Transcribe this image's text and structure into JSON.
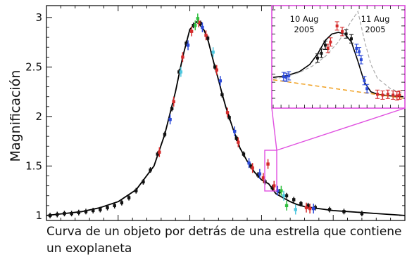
{
  "chart_data": [
    {
      "type": "line",
      "ylabel": "Magnificación",
      "ylim": [
        0.95,
        3.12
      ],
      "xlim": [
        0,
        100
      ],
      "yticks": [
        1,
        1.5,
        2,
        2.5,
        3
      ],
      "ytick_labels": [
        "1",
        "1.5",
        "2",
        "2.5",
        "3"
      ],
      "series": [
        {
          "kind": "model",
          "x": [
            0,
            5,
            10,
            15,
            20,
            25,
            30,
            33,
            36,
            38,
            40,
            42,
            44,
            45,
            46,
            47,
            48,
            49,
            50,
            52,
            54,
            56,
            58,
            60,
            62,
            64,
            66,
            68,
            70,
            72,
            74,
            76,
            78,
            80,
            84,
            88,
            92,
            96,
            100
          ],
          "y": [
            1.0,
            1.02,
            1.04,
            1.08,
            1.14,
            1.26,
            1.5,
            1.82,
            2.25,
            2.6,
            2.88,
            2.96,
            2.87,
            2.78,
            2.64,
            2.5,
            2.37,
            2.23,
            2.1,
            1.88,
            1.68,
            1.55,
            1.44,
            1.36,
            1.32,
            1.22,
            1.18,
            1.14,
            1.11,
            1.09,
            1.08,
            1.07,
            1.06,
            1.05,
            1.04,
            1.03,
            1.02,
            1.01,
            1.0
          ]
        },
        {
          "kind": "observations",
          "color": "#111111",
          "x": [
            1,
            3,
            5,
            7,
            9,
            11,
            13,
            15,
            17,
            19,
            21,
            23,
            25,
            27,
            29,
            31,
            33,
            35,
            37,
            39,
            41,
            43,
            45,
            47,
            49,
            51,
            53,
            55,
            57,
            59,
            61,
            63,
            65,
            67,
            69,
            71,
            73,
            75,
            79,
            83,
            88
          ],
          "y": [
            1.0,
            1.01,
            1.02,
            1.02,
            1.03,
            1.04,
            1.05,
            1.06,
            1.08,
            1.1,
            1.13,
            1.18,
            1.25,
            1.34,
            1.46,
            1.62,
            1.82,
            2.08,
            2.45,
            2.74,
            2.92,
            2.94,
            2.79,
            2.5,
            2.22,
            1.99,
            1.78,
            1.62,
            1.5,
            1.41,
            1.34,
            1.28,
            1.24,
            1.2,
            1.16,
            1.12,
            1.1,
            1.08,
            1.06,
            1.04,
            1.02
          ]
        },
        {
          "kind": "observations",
          "color": "#d42a2a",
          "x": [
            31.5,
            35.5,
            38,
            40.5,
            42.5,
            44.5,
            47.5,
            50.5,
            53.5,
            57.5,
            60.5,
            61.8,
            63.5,
            72.5,
            73.5
          ],
          "y": [
            1.64,
            2.15,
            2.6,
            2.86,
            2.95,
            2.82,
            2.47,
            2.04,
            1.74,
            1.48,
            1.38,
            1.52,
            1.3,
            1.08,
            1.07
          ]
        },
        {
          "kind": "observations",
          "color": "#2c4ad8",
          "x": [
            34.5,
            39.5,
            43.5,
            48.5,
            52.5,
            56.5,
            59.5,
            64.5,
            74.5
          ],
          "y": [
            1.97,
            2.72,
            2.9,
            2.36,
            1.85,
            1.53,
            1.42,
            1.25,
            1.07
          ]
        },
        {
          "kind": "observations",
          "color": "#30c040",
          "x": [
            41.5,
            42.2,
            65.5,
            67.0
          ],
          "y": [
            2.92,
            2.99,
            1.25,
            1.1
          ]
        },
        {
          "kind": "observations",
          "color": "#50c8e0",
          "x": [
            37.5,
            46.5,
            66.2,
            69.5
          ],
          "y": [
            2.45,
            2.65,
            1.2,
            1.06
          ]
        }
      ]
    },
    {
      "type": "line",
      "annotations": [
        "10 Aug\n2005",
        "11 Aug\n2005"
      ],
      "series": [
        {
          "kind": "model",
          "x": [
            0,
            10,
            20,
            28,
            34,
            40,
            45,
            50,
            55,
            60,
            65,
            70,
            75,
            80,
            85,
            90,
            100
          ],
          "y": [
            0.26,
            0.28,
            0.33,
            0.42,
            0.55,
            0.72,
            0.8,
            0.82,
            0.8,
            0.7,
            0.46,
            0.2,
            0.08,
            0.05,
            0.04,
            0.03,
            0.02
          ]
        },
        {
          "kind": "model-no-planet",
          "color": "#aaaaaa",
          "x": [
            0,
            10,
            20,
            30,
            40,
            50,
            60,
            65,
            70,
            75,
            80,
            90,
            100
          ],
          "y": [
            0.24,
            0.27,
            0.32,
            0.4,
            0.52,
            0.7,
            0.96,
            1.08,
            0.72,
            0.42,
            0.25,
            0.12,
            0.06
          ]
        },
        {
          "kind": "baseline",
          "color": "#f0a020",
          "x": [
            0,
            100
          ],
          "y": [
            0.23,
            0.0
          ]
        },
        {
          "kind": "observations",
          "color": "#2c4ad8",
          "x": [
            8,
            10,
            12,
            64,
            66,
            67.5,
            70,
            72
          ],
          "y": [
            0.27,
            0.26,
            0.28,
            0.62,
            0.58,
            0.48,
            0.22,
            0.12
          ]
        },
        {
          "kind": "observations",
          "color": "#d42a2a",
          "x": [
            42,
            44,
            49,
            53,
            80,
            84,
            88,
            92,
            95,
            97
          ],
          "y": [
            0.62,
            0.7,
            0.9,
            0.83,
            0.05,
            0.04,
            0.05,
            0.04,
            0.03,
            0.04
          ]
        },
        {
          "kind": "observations",
          "color": "#111111",
          "x": [
            34,
            37,
            40,
            56,
            60
          ],
          "y": [
            0.5,
            0.56,
            0.66,
            0.8,
            0.74
          ]
        }
      ]
    }
  ],
  "caption": "Curva de un objeto por detrás de una estrella que contiene un exoplaneta",
  "colors": {
    "zoom_box": "#e050e0",
    "model_line": "#000000",
    "no_planet_model": "#aaaaaa",
    "baseline": "#f0a020"
  }
}
